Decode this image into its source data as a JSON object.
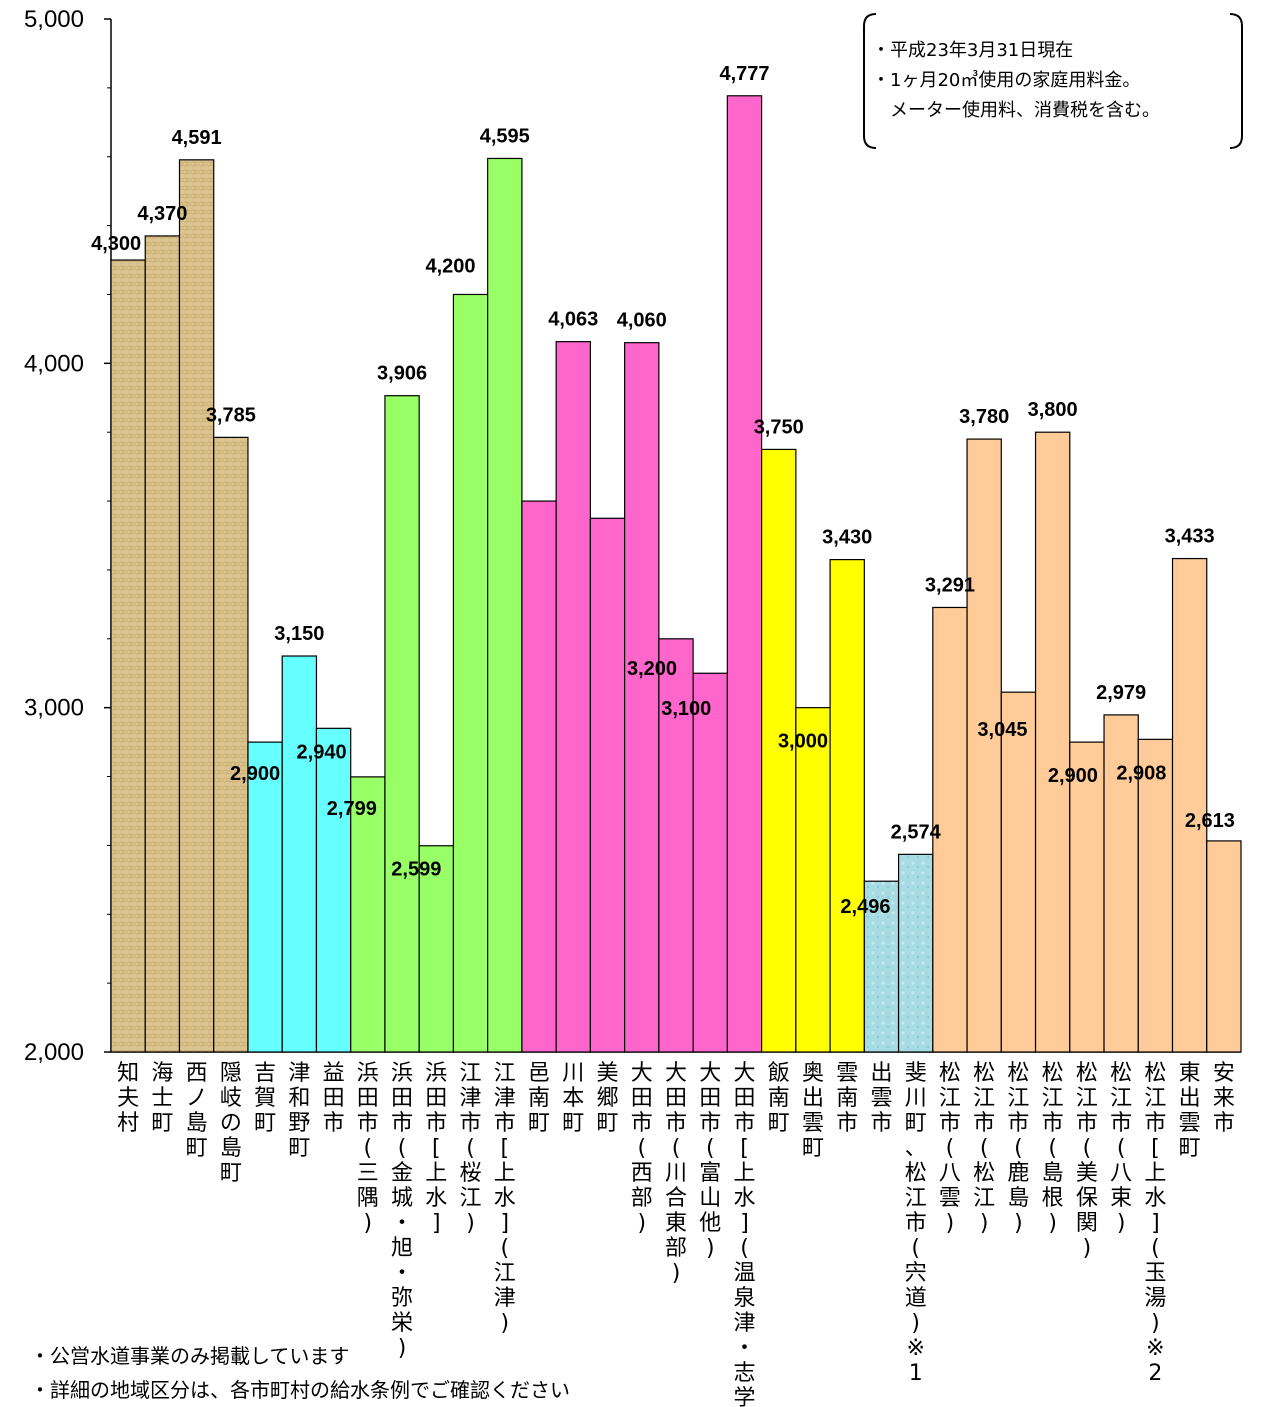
{
  "chart_data": {
    "type": "bar",
    "ylim": [
      2000,
      5000
    ],
    "yticks": [
      "2,000",
      "3,000",
      "4,000",
      "5,000"
    ],
    "ytick_values": [
      2000,
      3000,
      4000,
      5000
    ],
    "categories": [
      "知夫村",
      "海士町",
      "西ノ島町",
      "隠岐の島町",
      "吉賀町",
      "津和野町",
      "益田市",
      "浜田市(三隅)",
      "浜田市(金城・旭・弥栄)",
      "浜田市[上水]",
      "江津市(桜江)",
      "江津市[上水](江津)",
      "邑南町",
      "川本町",
      "美郷町",
      "大田市(西部)",
      "大田市(川合東部)",
      "大田市(富山他)",
      "大田市[上水](温泉津・志学他)",
      "飯南町",
      "奥出雲町",
      "雲南市",
      "出雲市",
      "斐川町、松江市(宍道)※1",
      "松江市(八雲)",
      "松江市(松江)",
      "松江市(鹿島)",
      "松江市(島根)",
      "松江市(美保関)",
      "松江市(八束)",
      "松江市[上水](玉湯)※2",
      "東出雲町",
      "安来市"
    ],
    "values": [
      4300,
      4370,
      4591,
      3785,
      2900,
      3150,
      2940,
      2799,
      3906,
      2599,
      4200,
      4595,
      3600,
      4063,
      3550,
      4060,
      3200,
      3100,
      4777,
      3750,
      3000,
      3430,
      2496,
      2574,
      3291,
      3780,
      3045,
      3800,
      2900,
      2979,
      2908,
      3433,
      2613
    ],
    "data_labels": [
      "4,300",
      "4,370",
      "4,591",
      "3,785",
      "2,900",
      "3,150",
      "2,940",
      "2,799",
      "3,906",
      "2,599",
      "4,200",
      "4,595",
      "",
      "4,063",
      "",
      "4,060",
      "3,200",
      "3,100",
      "4,777",
      "3,750",
      "3,000",
      "3,430",
      "2,496",
      "2,574",
      "3,291",
      "3,780",
      "3,045",
      "3,800",
      "2,900",
      "2,979",
      "2,908",
      "3,433",
      "2,613"
    ],
    "groups": [
      {
        "color": "#D9C28A",
        "pattern": "wood",
        "count": 4
      },
      {
        "color": "#66FFFF",
        "pattern": "solid",
        "count": 3
      },
      {
        "color": "#99FF66",
        "pattern": "solid",
        "count": 5
      },
      {
        "color": "#FF66CC",
        "pattern": "solid",
        "count": 7
      },
      {
        "color": "#FFFF00",
        "pattern": "solid",
        "count": 3
      },
      {
        "color": "#A6DDE6",
        "pattern": "water",
        "count": 2
      },
      {
        "color": "#FFCC99",
        "pattern": "solid",
        "count": 9
      }
    ]
  },
  "note": {
    "lines": [
      "・平成23年3月31日現在",
      "・1ヶ月20㎥使用の家庭用料金。",
      "　メーター使用料、消費税を含む。"
    ]
  },
  "footnotes": [
    "・公営水道事業のみ掲載しています",
    "・詳細の地域区分は、各市町村の給水条例でご確認ください"
  ]
}
